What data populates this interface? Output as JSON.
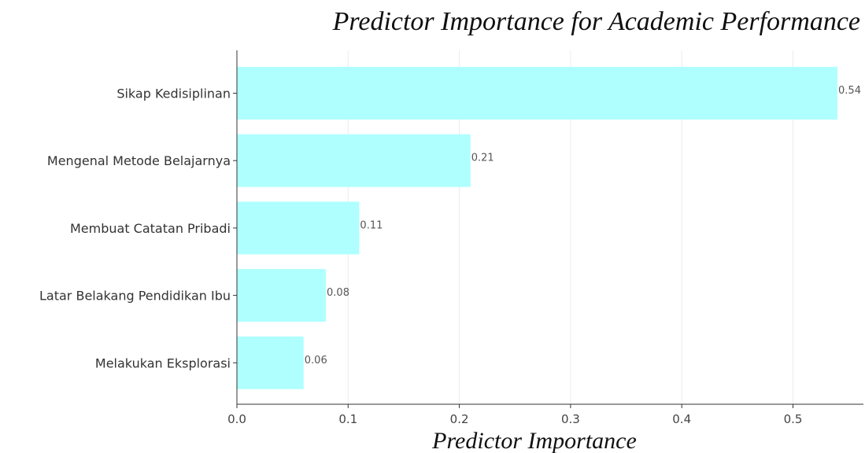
{
  "chart_data": {
    "type": "bar",
    "orientation": "horizontal",
    "title": "Predictor Importance for Academic Performance",
    "xlabel": "Predictor Importance",
    "ylabel": "",
    "categories": [
      "Sikap Kedisiplinan",
      "Mengenal Metode Belajarnya",
      "Membuat Catatan Pribadi",
      "Latar Belakang Pendidikan Ibu",
      "Melakukan Eksplorasi"
    ],
    "values": [
      0.54,
      0.21,
      0.11,
      0.08,
      0.06
    ],
    "value_labels": [
      "0.54",
      "0.21",
      "0.11",
      "0.08",
      "0.06"
    ],
    "xticks": [
      "0.0",
      "0.1",
      "0.2",
      "0.3",
      "0.4",
      "0.5"
    ],
    "xtick_values": [
      0.0,
      0.1,
      0.2,
      0.3,
      0.4,
      0.5
    ],
    "xlim": [
      0,
      0.567
    ],
    "grid": true,
    "bar_color": "#b0ffff"
  }
}
